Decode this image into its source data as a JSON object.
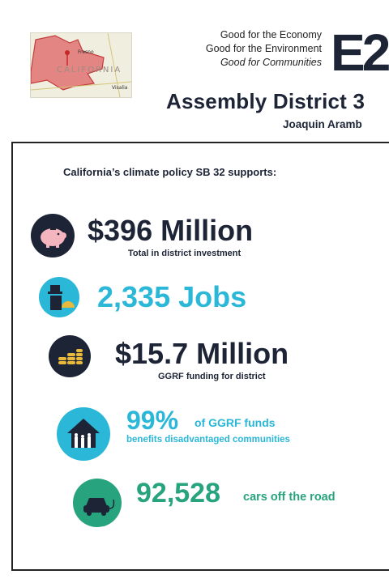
{
  "map": {
    "city_1": "Fresno",
    "city_2": "Visalia",
    "state_label": "CALIFORNIA"
  },
  "taglines": [
    "Good for the Economy",
    "Good for the Environment",
    "Good for Communities"
  ],
  "logo": {
    "text": "E2",
    "color": "#1c2436"
  },
  "header": {
    "title": "Assembly District 3",
    "member": "Joaquin Aramb"
  },
  "intro": "California’s climate policy SB 32 supports:",
  "stats": [
    {
      "value": "$396 Million",
      "caption": "Total in district investment",
      "icon": "piggy-bank-icon"
    },
    {
      "value": "2,335 Jobs",
      "caption": "",
      "icon": "worker-icon"
    },
    {
      "value": "$15.7 Million",
      "caption": "GGRF funding for district",
      "icon": "coins-icon"
    },
    {
      "value": "99%",
      "caption_inline": "of GGRF funds",
      "caption": "benefits disadvantaged communities",
      "icon": "community-house-icon"
    },
    {
      "value": "92,528",
      "caption": "cars off the road",
      "icon": "electric-car-icon"
    }
  ],
  "colors": {
    "navy": "#1c2436",
    "blue": "#2ab7d8",
    "green": "#27a37e",
    "gold": "#e8b93a"
  }
}
